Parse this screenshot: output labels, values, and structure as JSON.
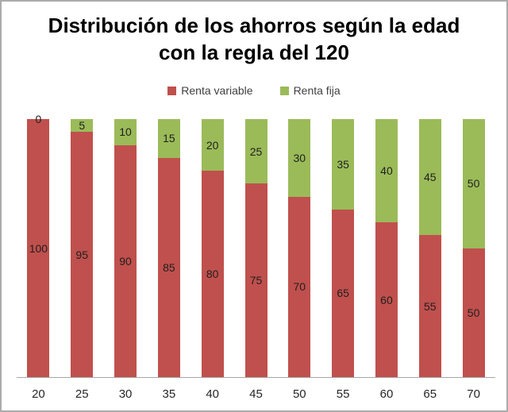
{
  "window": {
    "background": "#ffffff",
    "border_color": "#ababab"
  },
  "chart_data": {
    "type": "bar",
    "stacked": true,
    "orientation": "vertical",
    "title": "Distribución de los ahorros según la edad con la regla del 120",
    "xlabel": "",
    "ylabel": "",
    "ylim": [
      0,
      100
    ],
    "grid": false,
    "legend_position": "top",
    "data_labels": "center",
    "axis_line_color": "#a6a6a6",
    "label_color": "#1f1f1f",
    "categories": [
      "20",
      "25",
      "30",
      "35",
      "40",
      "45",
      "50",
      "55",
      "60",
      "65",
      "70"
    ],
    "series": [
      {
        "name": "Renta variable",
        "color": "#c0504d",
        "values": [
          100,
          95,
          90,
          85,
          80,
          75,
          70,
          65,
          60,
          55,
          50
        ]
      },
      {
        "name": "Renta fija",
        "color": "#9bbb59",
        "values": [
          0,
          5,
          10,
          15,
          20,
          25,
          30,
          35,
          40,
          45,
          50
        ]
      }
    ]
  }
}
